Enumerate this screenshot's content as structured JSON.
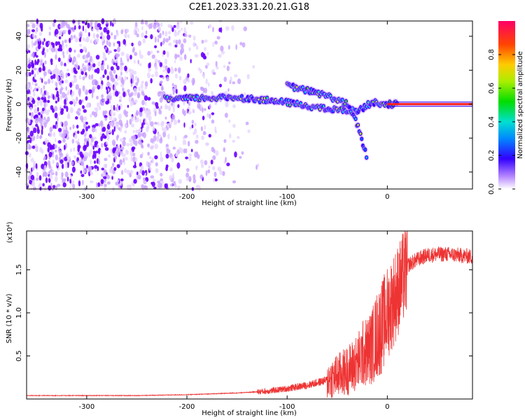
{
  "title": "C2E1.2023.331.20.21.G18",
  "chart_data": [
    {
      "type": "heatmap",
      "xlabel": "Height of straight line (km)",
      "ylabel": "Frequency (Hz)",
      "xlim": [
        -360,
        85
      ],
      "ylim": [
        -50,
        49
      ],
      "x_ticks": [
        -300,
        -200,
        -100,
        0
      ],
      "y_ticks": [
        -40,
        -20,
        0,
        20,
        40
      ],
      "colorbar": {
        "label": "Normalized spectral amplitude",
        "range": [
          0,
          1
        ],
        "ticks": [
          0.0,
          0.2,
          0.4,
          0.6,
          0.8
        ]
      },
      "features": [
        {
          "name": "noise",
          "x": [
            -360,
            -140
          ],
          "y": [
            -50,
            49
          ],
          "level": 0.15
        },
        {
          "name": "main-trace",
          "points": [
            [
              -222,
              3
            ],
            [
              -150,
              4
            ],
            [
              -100,
              1
            ],
            [
              -60,
              -3
            ],
            [
              -30,
              -4
            ],
            [
              -15,
              1
            ],
            [
              0,
              0
            ],
            [
              85,
              0
            ]
          ],
          "level": 0.35
        },
        {
          "name": "branch-trace",
          "points": [
            [
              -100,
              11
            ],
            [
              -60,
              5
            ],
            [
              -40,
              0
            ],
            [
              -30,
              -12
            ],
            [
              -20,
              -32
            ]
          ],
          "level": 0.3
        },
        {
          "name": "direct-signal",
          "x": [
            0,
            85
          ],
          "y": 0,
          "level": 1.0
        }
      ]
    },
    {
      "type": "line",
      "xlabel": "Height of straight line (km)",
      "ylabel": "SNR (10 * v/v)",
      "y_multiplier": "(x10⁴)",
      "xlim": [
        -360,
        85
      ],
      "ylim": [
        0,
        1.95
      ],
      "x_ticks": [
        -300,
        -200,
        -100,
        0
      ],
      "y_ticks": [
        "0.5",
        "1.0",
        "1.5"
      ],
      "color": "#ee3333",
      "series": [
        {
          "x": [
            -360,
            -300,
            -250,
            -200,
            -150,
            -120,
            -100,
            -80,
            -60,
            -50,
            -40,
            -30,
            -25,
            -20,
            -15,
            -10,
            -5,
            0,
            5,
            10,
            15,
            20,
            30,
            40,
            50,
            60,
            70,
            85
          ],
          "y": [
            0.04,
            0.04,
            0.04,
            0.05,
            0.07,
            0.09,
            0.12,
            0.16,
            0.22,
            0.27,
            0.33,
            0.42,
            0.52,
            0.55,
            0.62,
            0.75,
            0.85,
            1.0,
            1.12,
            1.25,
            1.38,
            1.55,
            1.62,
            1.67,
            1.68,
            1.68,
            1.67,
            1.65
          ]
        }
      ]
    }
  ]
}
